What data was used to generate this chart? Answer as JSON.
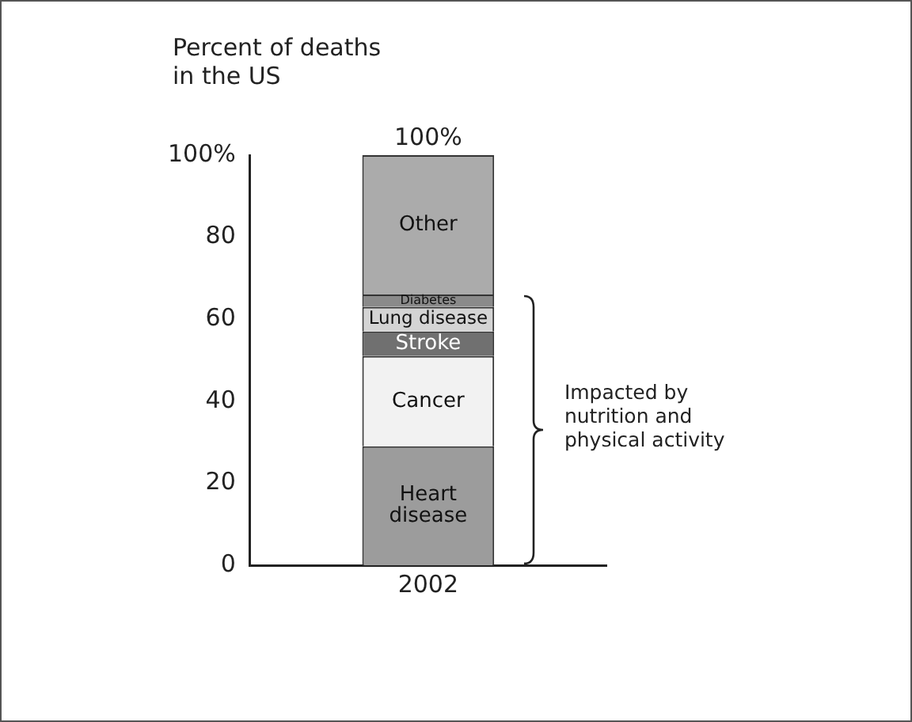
{
  "chart_data": {
    "type": "bar",
    "ylabel": "Percent of deaths in the US",
    "categories": [
      "2002"
    ],
    "stacked": true,
    "series": [
      {
        "name": "Heart disease",
        "color": "#9c9c9c",
        "values": [
          29
        ]
      },
      {
        "name": "Cancer",
        "color": "#f2f2f2",
        "values": [
          22
        ]
      },
      {
        "name": "Stroke",
        "color": "#707070",
        "values": [
          6
        ]
      },
      {
        "name": "Lung disease",
        "color": "#d4d4d4",
        "values": [
          6
        ]
      },
      {
        "name": "Diabetes",
        "color": "#8a8a8a",
        "values": [
          3
        ]
      },
      {
        "name": "Other",
        "color": "#ababab",
        "values": [
          34
        ]
      }
    ],
    "totals": [
      "100%"
    ],
    "ylim": [
      0,
      100
    ],
    "yticks": [
      0,
      20,
      40,
      60,
      80,
      {
        "value": 100,
        "label": "100%"
      }
    ],
    "grid": false,
    "legend": false,
    "annotations": [
      "Impacted by nutrition and physical activity"
    ]
  }
}
